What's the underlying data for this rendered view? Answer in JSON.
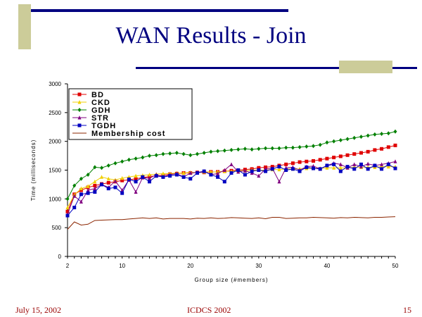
{
  "slide": {
    "title": "WAN Results - Join",
    "footer_date": "July 15, 2002",
    "footer_conference": "ICDCS 2002",
    "footer_page": "15"
  },
  "colors": {
    "title": "#000080",
    "accent_bar": "#000080",
    "accent_block": "#cccc99",
    "footer": "#990000"
  },
  "chart_data": {
    "type": "line",
    "xlabel": "Group size (#members)",
    "ylabel": "Time (milliseconds)",
    "xlim": [
      2,
      50
    ],
    "ylim": [
      0,
      3000
    ],
    "xticks": [
      2,
      10,
      20,
      30,
      40,
      50
    ],
    "yticks": [
      0,
      500,
      1000,
      1500,
      2000,
      2500,
      3000
    ],
    "grid": false,
    "legend_position": "top-left",
    "x": [
      2,
      3,
      4,
      5,
      6,
      7,
      8,
      9,
      10,
      11,
      12,
      13,
      14,
      15,
      16,
      17,
      18,
      19,
      20,
      21,
      22,
      23,
      24,
      25,
      26,
      27,
      28,
      29,
      30,
      31,
      32,
      33,
      34,
      35,
      36,
      37,
      38,
      39,
      40,
      41,
      42,
      43,
      44,
      45,
      46,
      47,
      48,
      49,
      50
    ],
    "series": [
      {
        "name": "BD",
        "color": "#e00000",
        "marker": "square",
        "values": [
          780,
          1080,
          1150,
          1200,
          1230,
          1260,
          1280,
          1300,
          1320,
          1330,
          1350,
          1370,
          1390,
          1400,
          1410,
          1430,
          1440,
          1450,
          1450,
          1460,
          1460,
          1470,
          1470,
          1480,
          1490,
          1500,
          1510,
          1520,
          1540,
          1550,
          1560,
          1580,
          1600,
          1620,
          1640,
          1650,
          1660,
          1680,
          1700,
          1720,
          1740,
          1760,
          1780,
          1800,
          1820,
          1850,
          1870,
          1900,
          1930
        ]
      },
      {
        "name": "CKD",
        "color": "#f0d000",
        "marker": "triangle",
        "values": [
          850,
          1070,
          1180,
          1220,
          1300,
          1380,
          1350,
          1330,
          1360,
          1380,
          1400,
          1410,
          1420,
          1430,
          1440,
          1440,
          1450,
          1450,
          1460,
          1460,
          1470,
          1470,
          1470,
          1480,
          1480,
          1490,
          1490,
          1500,
          1500,
          1500,
          1510,
          1510,
          1520,
          1520,
          1520,
          1530,
          1530,
          1530,
          1540,
          1540,
          1540,
          1540,
          1550,
          1550,
          1550,
          1550,
          1560,
          1560,
          1560
        ]
      },
      {
        "name": "GDH",
        "color": "#008000",
        "marker": "diamond",
        "values": [
          1000,
          1230,
          1350,
          1420,
          1550,
          1540,
          1580,
          1620,
          1650,
          1680,
          1700,
          1720,
          1750,
          1760,
          1780,
          1790,
          1800,
          1780,
          1760,
          1780,
          1800,
          1820,
          1830,
          1840,
          1850,
          1860,
          1870,
          1860,
          1870,
          1880,
          1880,
          1880,
          1890,
          1890,
          1900,
          1910,
          1920,
          1940,
          1980,
          2000,
          2020,
          2040,
          2060,
          2080,
          2100,
          2120,
          2130,
          2140,
          2170
        ]
      },
      {
        "name": "STR",
        "color": "#800080",
        "marker": "triangle",
        "values": [
          730,
          1050,
          950,
          1150,
          1180,
          1250,
          1200,
          1310,
          1150,
          1330,
          1120,
          1370,
          1360,
          1420,
          1380,
          1420,
          1440,
          1380,
          1450,
          1460,
          1480,
          1420,
          1440,
          1500,
          1600,
          1470,
          1490,
          1450,
          1400,
          1520,
          1530,
          1300,
          1540,
          1550,
          1500,
          1560,
          1570,
          1520,
          1580,
          1620,
          1600,
          1540,
          1600,
          1560,
          1610,
          1580,
          1600,
          1620,
          1650
        ]
      },
      {
        "name": "TGDH",
        "color": "#0000c0",
        "marker": "square",
        "values": [
          710,
          850,
          1080,
          1100,
          1120,
          1250,
          1180,
          1200,
          1100,
          1340,
          1300,
          1380,
          1300,
          1400,
          1380,
          1400,
          1420,
          1380,
          1350,
          1450,
          1480,
          1420,
          1380,
          1300,
          1450,
          1500,
          1420,
          1480,
          1500,
          1480,
          1520,
          1560,
          1500,
          1520,
          1480,
          1550,
          1530,
          1520,
          1580,
          1600,
          1480,
          1560,
          1520,
          1600,
          1520,
          1580,
          1520,
          1600,
          1530
        ]
      },
      {
        "name": "Membership cost",
        "color": "#8b2500",
        "marker": "none",
        "values": [
          470,
          600,
          545,
          560,
          625,
          630,
          635,
          640,
          640,
          650,
          660,
          670,
          660,
          670,
          650,
          660,
          660,
          660,
          650,
          665,
          660,
          670,
          660,
          665,
          675,
          670,
          665,
          660,
          670,
          655,
          680,
          680,
          660,
          665,
          670,
          670,
          680,
          675,
          670,
          665,
          675,
          670,
          680,
          675,
          670,
          680,
          680,
          685,
          690
        ]
      }
    ]
  }
}
